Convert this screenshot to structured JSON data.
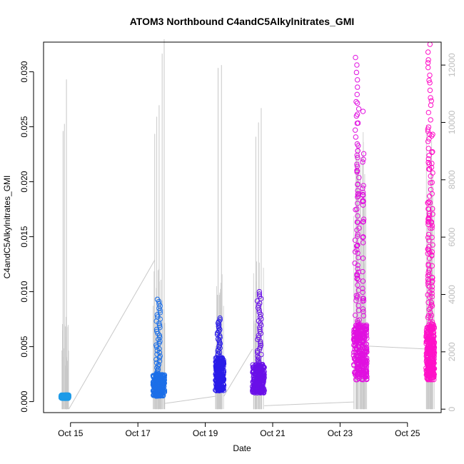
{
  "chart_data": {
    "type": "scatter",
    "title": "ATOM3 Northbound C4andC5Alkylnitrates_GMI",
    "xlabel": "Date",
    "ylabel": "C4andC5Alkylnitrates_GMI",
    "x_ticks": [
      "Oct 15",
      "Oct 17",
      "Oct 19",
      "Oct 21",
      "Oct 23",
      "Oct 25"
    ],
    "x_tick_days": [
      15,
      17,
      19,
      21,
      23,
      25
    ],
    "xlim": [
      14.2,
      26.0
    ],
    "y_ticks": [
      "0.000",
      "0.005",
      "0.010",
      "0.015",
      "0.020",
      "0.025",
      "0.030"
    ],
    "ylim": [
      -0.001,
      0.0327
    ],
    "y2_ticks": [
      "0",
      "2000",
      "4000",
      "6000",
      "8000",
      "10000",
      "12000"
    ],
    "y2lim": [
      -120,
      12800
    ],
    "grid": false,
    "legend": "none",
    "series": [
      {
        "flight_day": 14.85,
        "x_range": [
          14.72,
          14.95
        ],
        "baseline": 0.0003,
        "max": 0.0006,
        "color": "#1e9be8"
      },
      {
        "flight_day": 17.6,
        "x_range": [
          17.45,
          17.8
        ],
        "baseline": 0.0005,
        "max": 0.0093,
        "color": "#1c6fe8"
      },
      {
        "flight_day": 19.4,
        "x_range": [
          19.3,
          19.55
        ],
        "baseline": 0.001,
        "max": 0.0076,
        "color": "#2a1ce8"
      },
      {
        "flight_day": 20.6,
        "x_range": [
          20.4,
          20.75
        ],
        "baseline": 0.0008,
        "max": 0.01,
        "color": "#6a10e8"
      },
      {
        "flight_day": 23.5,
        "x_range": [
          23.4,
          23.8
        ],
        "baseline": 0.002,
        "max": 0.0313,
        "color": "#e010e0"
      },
      {
        "flight_day": 25.65,
        "x_range": [
          25.55,
          25.8
        ],
        "baseline": 0.002,
        "max": 0.0325,
        "color": "#ff10c8"
      }
    ],
    "altitude_series": {
      "color": "#c8c8c8",
      "spikes": [
        {
          "x": 14.78,
          "alt": 9700
        },
        {
          "x": 14.82,
          "alt": 9950
        },
        {
          "x": 14.88,
          "alt": 11500
        },
        {
          "x": 17.5,
          "alt": 9600
        },
        {
          "x": 17.56,
          "alt": 10200
        },
        {
          "x": 17.63,
          "alt": 10600
        },
        {
          "x": 17.72,
          "alt": 12400
        },
        {
          "x": 17.78,
          "alt": 12900
        },
        {
          "x": 19.38,
          "alt": 11900
        },
        {
          "x": 19.48,
          "alt": 12000
        },
        {
          "x": 20.5,
          "alt": 9500
        },
        {
          "x": 20.58,
          "alt": 10000
        },
        {
          "x": 20.66,
          "alt": 10500
        },
        {
          "x": 23.5,
          "alt": 8400
        },
        {
          "x": 23.6,
          "alt": 8000
        },
        {
          "x": 23.7,
          "alt": 7400
        },
        {
          "x": 25.6,
          "alt": 7000
        },
        {
          "x": 25.7,
          "alt": 8600
        }
      ],
      "transits": [
        {
          "from": [
            14.95,
            0
          ],
          "to": [
            17.5,
            5200
          ]
        },
        {
          "from": [
            17.8,
            200
          ],
          "to": [
            19.3,
            450
          ]
        },
        {
          "from": [
            19.55,
            450
          ],
          "to": [
            20.4,
            2100
          ]
        },
        {
          "from": [
            20.75,
            120
          ],
          "to": [
            23.4,
            250
          ]
        },
        {
          "from": [
            23.8,
            2200
          ],
          "to": [
            25.55,
            2100
          ]
        }
      ]
    }
  }
}
